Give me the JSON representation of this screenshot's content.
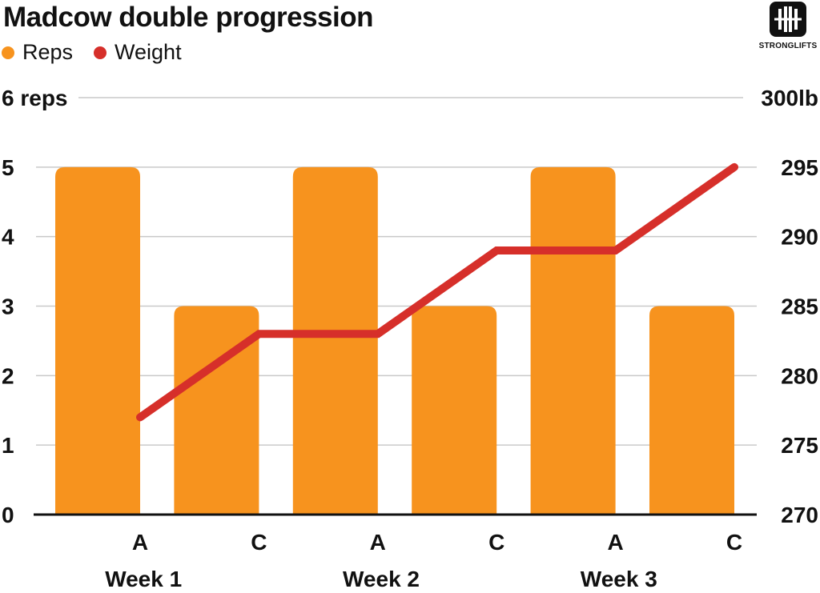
{
  "header": {
    "title": "Madcow double progression"
  },
  "logo": {
    "text": "STRONGLIFTS",
    "icon": "barbell-icon"
  },
  "colors": {
    "reps": "#f7931e",
    "weight": "#d62f2a",
    "grid": "#c9c9c9",
    "axis": "#111111"
  },
  "chart_data": {
    "type": "bar",
    "categories": [
      "A",
      "C",
      "A",
      "C",
      "A",
      "C"
    ],
    "groups": [
      "Week 1",
      "Week 2",
      "Week 3"
    ],
    "series": [
      {
        "name": "Reps",
        "type": "bar",
        "axis": "left",
        "values": [
          5,
          3,
          5,
          3,
          5,
          3
        ]
      },
      {
        "name": "Weight",
        "type": "line",
        "axis": "right",
        "values": [
          277,
          283,
          283,
          289,
          289,
          295
        ]
      }
    ],
    "left_axis": {
      "unit_label": "6 reps",
      "ticks": [
        "0",
        "1",
        "2",
        "3",
        "4",
        "5"
      ],
      "ylim": [
        0,
        6
      ]
    },
    "right_axis": {
      "unit_label": "300lb",
      "ticks": [
        "270",
        "275",
        "280",
        "285",
        "290",
        "295"
      ],
      "ylim": [
        270,
        300
      ]
    },
    "grid": true,
    "legend_position": "top-left"
  }
}
